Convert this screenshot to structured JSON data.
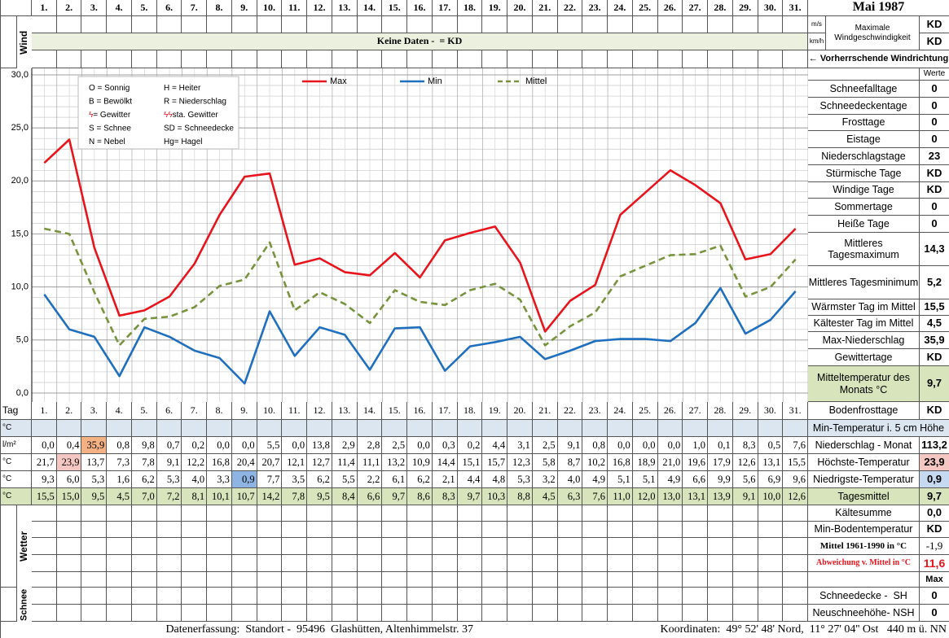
{
  "header": {
    "title": "Mai 1987",
    "wind_label": "Wind",
    "units": [
      "m/s",
      "km/h"
    ],
    "wind_max_label": "Maximale Windgeschwindigkeit",
    "wind_max_values": [
      "KD",
      "KD"
    ],
    "no_data_note": "Keine Daten -  = KD",
    "wind_direction": "← Vorherrschende Windrichtung",
    "values_header": "Werte"
  },
  "chart_data": {
    "type": "line",
    "categories": [
      "1.",
      "2.",
      "3.",
      "4.",
      "5.",
      "6.",
      "7.",
      "8.",
      "9.",
      "10.",
      "11.",
      "12.",
      "13.",
      "14.",
      "15.",
      "16.",
      "17.",
      "18.",
      "19.",
      "20.",
      "21.",
      "22.",
      "23.",
      "24.",
      "25.",
      "26.",
      "27.",
      "28.",
      "29.",
      "30.",
      "31."
    ],
    "series": [
      {
        "name": "Max",
        "color": "#e8141c",
        "dashed": false,
        "values": [
          21.7,
          23.9,
          13.7,
          7.3,
          7.8,
          9.1,
          12.2,
          16.8,
          20.4,
          20.7,
          12.1,
          12.7,
          11.4,
          11.1,
          13.2,
          10.9,
          14.4,
          15.1,
          15.7,
          12.3,
          5.8,
          8.7,
          10.2,
          16.8,
          18.9,
          21.0,
          19.6,
          17.9,
          12.6,
          13.1,
          15.5
        ],
        "value_labels": [
          "21,7",
          "23,9",
          "13,7",
          "7,3",
          "7,8",
          "9,1",
          "12,2",
          "16,8",
          "20,4",
          "20,7",
          "12,1",
          "12,7",
          "11,4",
          "11,1",
          "13,2",
          "10,9",
          "14,4",
          "15,1",
          "15,7",
          "12,3",
          "5,8",
          "8,7",
          "10,2",
          "16,8",
          "18,9",
          "21,0",
          "19,6",
          "17,9",
          "12,6",
          "13,1",
          "15,5"
        ]
      },
      {
        "name": "Min",
        "color": "#1f6fbf",
        "dashed": false,
        "values": [
          9.3,
          6.0,
          5.3,
          1.6,
          6.2,
          5.3,
          4.0,
          3.3,
          0.9,
          7.7,
          3.5,
          6.2,
          5.5,
          2.2,
          6.1,
          6.2,
          2.1,
          4.4,
          4.8,
          5.3,
          3.2,
          4.0,
          4.9,
          5.1,
          5.1,
          4.9,
          6.6,
          9.9,
          5.6,
          6.9,
          9.6
        ],
        "value_labels": [
          "9,3",
          "6,0",
          "5,3",
          "1,6",
          "6,2",
          "5,3",
          "4,0",
          "3,3",
          "0,9",
          "7,7",
          "3,5",
          "6,2",
          "5,5",
          "2,2",
          "6,1",
          "6,2",
          "2,1",
          "4,4",
          "4,8",
          "5,3",
          "3,2",
          "4,0",
          "4,9",
          "5,1",
          "5,1",
          "4,9",
          "6,6",
          "9,9",
          "5,6",
          "6,9",
          "9,6"
        ]
      },
      {
        "name": "Mittel",
        "color": "#77933c",
        "dashed": true,
        "values": [
          15.5,
          15.0,
          9.5,
          4.5,
          7.0,
          7.2,
          8.1,
          10.1,
          10.7,
          14.2,
          7.8,
          9.5,
          8.4,
          6.6,
          9.7,
          8.6,
          8.3,
          9.7,
          10.3,
          8.8,
          4.5,
          6.3,
          7.6,
          11.0,
          12.0,
          13.0,
          13.1,
          13.9,
          9.1,
          10.0,
          12.6
        ],
        "value_labels": [
          "15,5",
          "15,0",
          "9,5",
          "4,5",
          "7,0",
          "7,2",
          "8,1",
          "10,1",
          "10,7",
          "14,2",
          "7,8",
          "9,5",
          "8,4",
          "6,6",
          "9,7",
          "8,6",
          "8,3",
          "9,7",
          "10,3",
          "8,8",
          "4,5",
          "6,3",
          "7,6",
          "11,0",
          "12,0",
          "13,0",
          "13,1",
          "13,9",
          "9,1",
          "10,0",
          "12,6"
        ]
      }
    ],
    "ylim": [
      0,
      30
    ],
    "yticks": [
      {
        "value": 0,
        "label": "0,0"
      },
      {
        "value": 5,
        "label": "5,0"
      },
      {
        "value": 10,
        "label": "10,0"
      },
      {
        "value": 15,
        "label": "15,0"
      },
      {
        "value": 20,
        "label": "20,0"
      },
      {
        "value": 25,
        "label": "25,0"
      },
      {
        "value": 30,
        "label": "30,0"
      }
    ],
    "grid": true,
    "legend": "top",
    "annotations": [
      {
        "text": "O = Sonnig"
      },
      {
        "text": "H = Heiter"
      },
      {
        "text": "B = Bewölkt"
      },
      {
        "text": "R = Niederschlag"
      },
      {
        "symbol": "ϟ",
        "text": "= Gewitter"
      },
      {
        "symbol": "ϟϟ",
        "text": "sta. Gewitter"
      },
      {
        "text": "S = Schnee"
      },
      {
        "text": "SD = Schneedecke"
      },
      {
        "text": "N = Nebel"
      },
      {
        "text": "Hg= Hagel"
      }
    ]
  },
  "stats": [
    {
      "label": "Schneefalltage",
      "value": "0"
    },
    {
      "label": "Schneedeckentage",
      "value": "0"
    },
    {
      "label": "Frosttage",
      "value": "0"
    },
    {
      "label": "Eistage",
      "value": "0"
    },
    {
      "label": "Niederschlagstage",
      "value": "23"
    },
    {
      "label": "Stürmische Tage",
      "value": "KD"
    },
    {
      "label": "Windige Tage",
      "value": "KD"
    },
    {
      "label": "Sommertage",
      "value": "0"
    },
    {
      "label": "Heiße Tage",
      "value": "0"
    },
    {
      "label": "Mittleres Tagesmaximum",
      "value": "14,3"
    },
    {
      "label": "Mittleres Tagesminimum",
      "value": "5,2"
    },
    {
      "label": "Wärmster Tag im Mittel",
      "value": "15,5"
    },
    {
      "label": "Kältester Tag im Mittel",
      "value": "4,5"
    },
    {
      "label": "Max-Niederschlag",
      "value": "35,9"
    },
    {
      "label": "Gewittertage",
      "value": "KD"
    },
    {
      "label": "Mitteltemperatur des Monats °C",
      "value": "9,7"
    }
  ],
  "table": {
    "day_label": "Tag",
    "units": [
      "°C",
      "l/m²",
      "°C",
      "°C",
      "°C"
    ],
    "precipitation": [
      "0,0",
      "0,4",
      "35,9",
      "0,8",
      "9,8",
      "0,7",
      "0,2",
      "0,0",
      "0,0",
      "5,5",
      "0,0",
      "13,8",
      "2,9",
      "2,8",
      "2,5",
      "0,0",
      "0,3",
      "0,2",
      "4,4",
      "3,1",
      "2,5",
      "9,1",
      "0,8",
      "0,0",
      "0,0",
      "0,0",
      "1,0",
      "0,1",
      "8,3",
      "0,5",
      "7,6"
    ],
    "weather_label": "Wetter",
    "snow_label": "Schnee",
    "snow_max_header": "Max"
  },
  "summary": [
    {
      "label": "Bodenfrosttage",
      "value": "KD"
    },
    {
      "label": "Min-Temperatur i. 5 cm Höhe"
    },
    {
      "label": "Niederschlag - Monat",
      "value": "113,2"
    },
    {
      "label": "Höchste-Temperatur",
      "value": "23,9"
    },
    {
      "label": "Niedrigste-Temperatur",
      "value": "0,9"
    },
    {
      "label": "Tagesmittel",
      "value": "9,7"
    },
    {
      "label": "Kältesumme",
      "value": "0,0"
    },
    {
      "label": "Min-Bodentemperatur",
      "value": "KD"
    },
    {
      "label": "Mittel 1961-1990 in °C",
      "value": "-1,9"
    },
    {
      "label": "Abweichung v. Mittel in °C",
      "value": "11,6"
    },
    {
      "label": "Schneedecke -  SH",
      "value": "0"
    },
    {
      "label": "Neuschneehöhe- NSH",
      "value": "0"
    }
  ],
  "footer": {
    "left": "Datenerfassung:  Standort -  95496  Glashütten, Altenhimmelstr. 37",
    "right": "Koordinaten:  49° 52' 48' Nord,  11° 27' 04'' Ost   440 m ü. NN"
  }
}
